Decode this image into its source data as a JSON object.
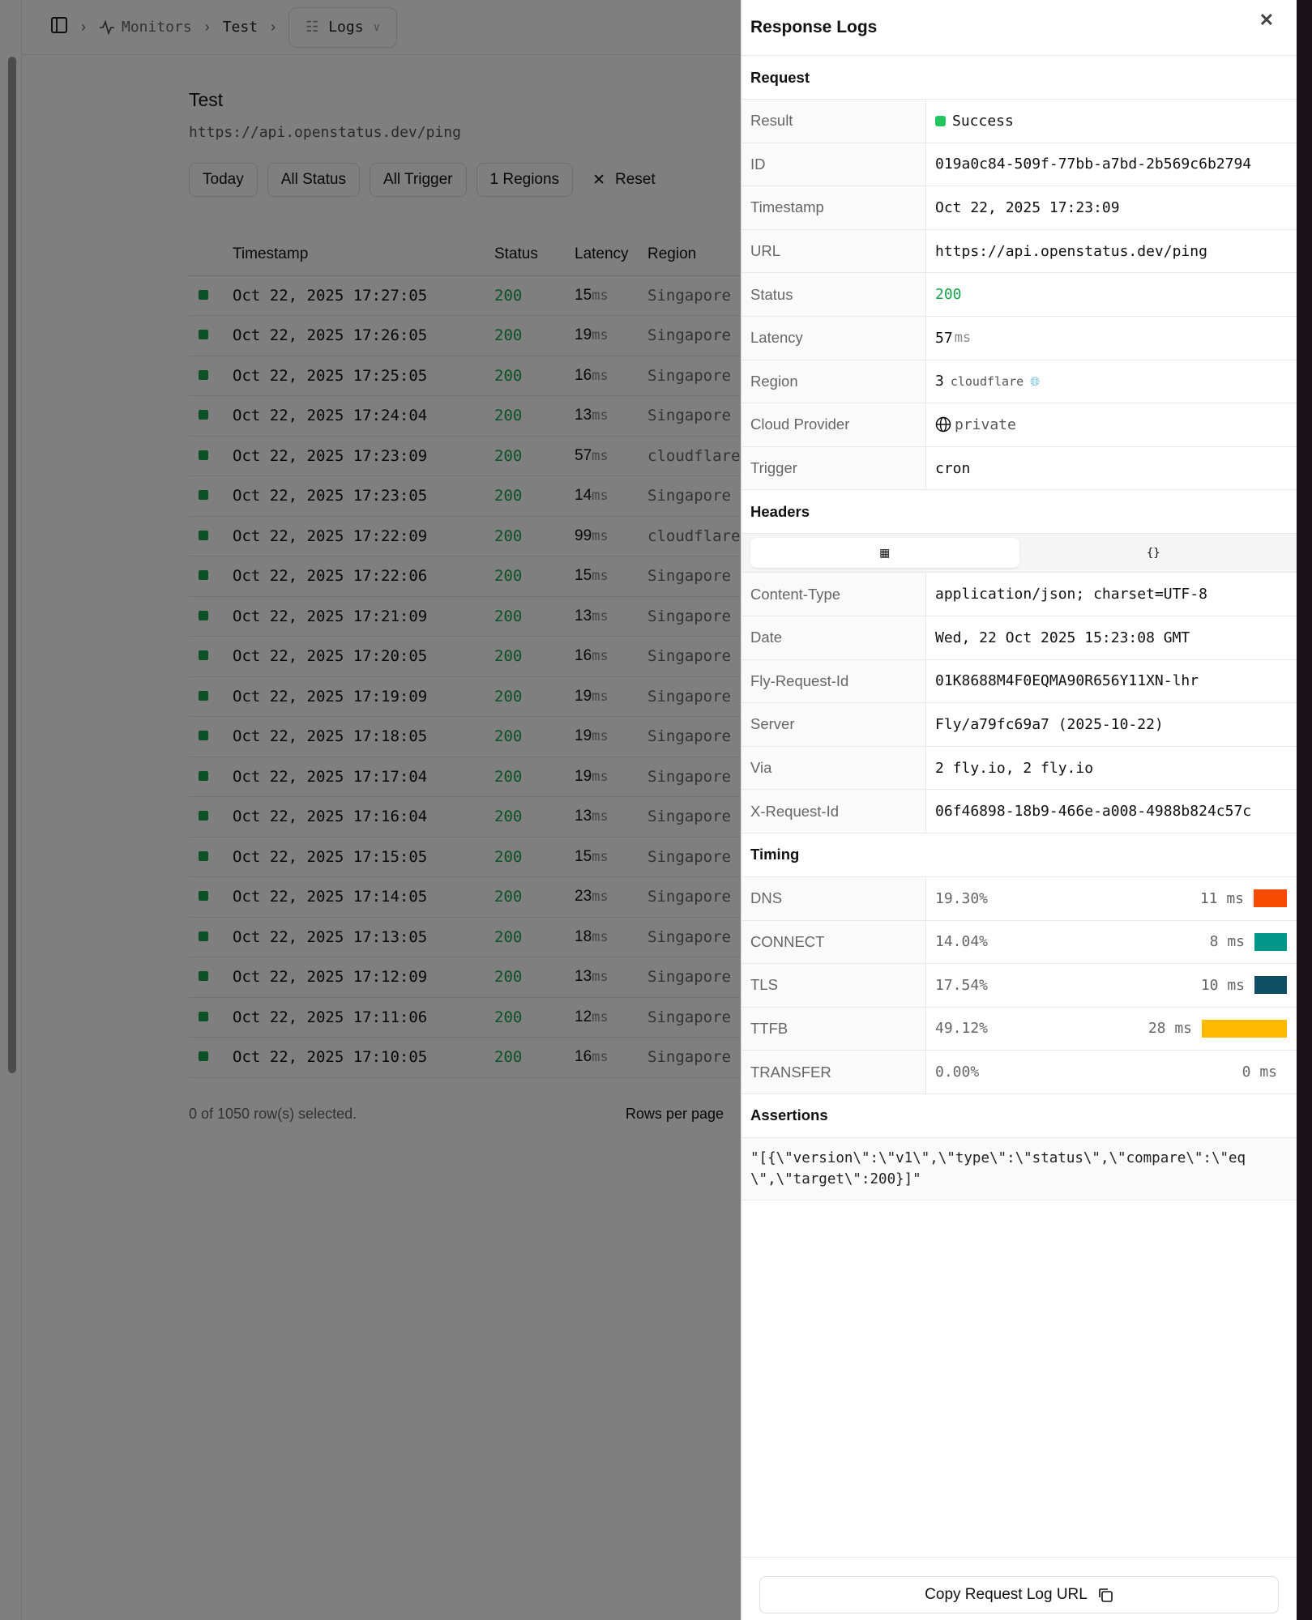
{
  "breadcrumb": {
    "items": [
      "Monitors",
      "Test"
    ],
    "select": "Logs"
  },
  "monitor": {
    "title": "Test",
    "url": "https://api.openstatus.dev/ping"
  },
  "filters": [
    "Today",
    "All Status",
    "All Trigger",
    "1 Regions"
  ],
  "reset_label": "Reset",
  "table": {
    "columns": [
      "Timestamp",
      "Status",
      "Latency",
      "Region"
    ],
    "unit": "ms",
    "rows": [
      [
        "Oct 22, 2025 17:27:05",
        "200",
        "15",
        "Singapore"
      ],
      [
        "Oct 22, 2025 17:26:05",
        "200",
        "19",
        "Singapore"
      ],
      [
        "Oct 22, 2025 17:25:05",
        "200",
        "16",
        "Singapore"
      ],
      [
        "Oct 22, 2025 17:24:04",
        "200",
        "13",
        "Singapore"
      ],
      [
        "Oct 22, 2025 17:23:09",
        "200",
        "57",
        "cloudflare"
      ],
      [
        "Oct 22, 2025 17:23:05",
        "200",
        "14",
        "Singapore"
      ],
      [
        "Oct 22, 2025 17:22:09",
        "200",
        "99",
        "cloudflare"
      ],
      [
        "Oct 22, 2025 17:22:06",
        "200",
        "15",
        "Singapore"
      ],
      [
        "Oct 22, 2025 17:21:09",
        "200",
        "13",
        "Singapore"
      ],
      [
        "Oct 22, 2025 17:20:05",
        "200",
        "16",
        "Singapore"
      ],
      [
        "Oct 22, 2025 17:19:09",
        "200",
        "19",
        "Singapore"
      ],
      [
        "Oct 22, 2025 17:18:05",
        "200",
        "19",
        "Singapore"
      ],
      [
        "Oct 22, 2025 17:17:04",
        "200",
        "19",
        "Singapore"
      ],
      [
        "Oct 22, 2025 17:16:04",
        "200",
        "13",
        "Singapore"
      ],
      [
        "Oct 22, 2025 17:15:05",
        "200",
        "15",
        "Singapore"
      ],
      [
        "Oct 22, 2025 17:14:05",
        "200",
        "23",
        "Singapore"
      ],
      [
        "Oct 22, 2025 17:13:05",
        "200",
        "18",
        "Singapore"
      ],
      [
        "Oct 22, 2025 17:12:09",
        "200",
        "13",
        "Singapore"
      ],
      [
        "Oct 22, 2025 17:11:06",
        "200",
        "12",
        "Singapore"
      ],
      [
        "Oct 22, 2025 17:10:05",
        "200",
        "16",
        "Singapore"
      ]
    ],
    "selected_text": "0 of 1050 row(s) selected.",
    "rows_per_page_label": "Rows per page"
  },
  "panel": {
    "title": "Response Logs",
    "request_title": "Request",
    "request": {
      "result_label": "Result",
      "result": "Success",
      "id_label": "ID",
      "id": "019a0c84-509f-77bb-a7bd-2b569c6b2794",
      "timestamp_label": "Timestamp",
      "timestamp": "Oct 22, 2025 17:23:09",
      "url_label": "URL",
      "url": "https://api.openstatus.dev/ping",
      "status_label": "Status",
      "status": "200",
      "latency_label": "Latency",
      "latency": "57",
      "latency_unit": "ms",
      "region_label": "Region",
      "region_code": "3",
      "region_provider": "cloudflare",
      "cloud_label": "Cloud Provider",
      "cloud": "private",
      "trigger_label": "Trigger",
      "trigger": "cron"
    },
    "headers_title": "Headers",
    "headers": [
      [
        "Content-Type",
        "application/json; charset=UTF-8"
      ],
      [
        "Date",
        "Wed, 22 Oct 2025 15:23:08 GMT"
      ],
      [
        "Fly-Request-Id",
        "01K8688M4F0EQMA90R656Y11XN-lhr"
      ],
      [
        "Server",
        "Fly/a79fc69a7 (2025-10-22)"
      ],
      [
        "Via",
        "2 fly.io, 2 fly.io"
      ],
      [
        "X-Request-Id",
        "06f46898-18b9-466e-a008-4988b824c57c"
      ]
    ],
    "timing_title": "Timing",
    "timing": [
      {
        "label": "DNS",
        "percent": "19.30%",
        "ms": "11 ms",
        "color": "#f54a00"
      },
      {
        "label": "CONNECT",
        "percent": "14.04%",
        "ms": "8 ms",
        "color": "#009689"
      },
      {
        "label": "TLS",
        "percent": "17.54%",
        "ms": "10 ms",
        "color": "#104e64"
      },
      {
        "label": "TTFB",
        "percent": "49.12%",
        "ms": "28 ms",
        "color": "#ffb900"
      },
      {
        "label": "TRANSFER",
        "percent": "0.00%",
        "ms": "0 ms",
        "color": "#cccccc"
      }
    ],
    "assertions_title": "Assertions",
    "assertions": "\"[{\\\"version\\\":\\\"v1\\\",\\\"type\\\":\\\"status\\\",\\\"compare\\\":\\\"eq\\\",\\\"target\\\":200}]\"",
    "copy_label": "Copy Request Log URL"
  },
  "colors": {
    "success": "#16a34a",
    "overlay": "rgba(0,0,0,0.5)"
  }
}
